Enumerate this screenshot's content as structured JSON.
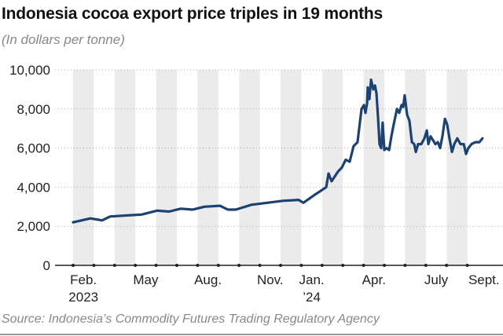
{
  "chart_data": {
    "type": "line",
    "title": "Indonesia cocoa export price triples in 19 months",
    "subtitle": "(In dollars per tonne)",
    "source": "Source: Indonesia’s Commodity Futures Trading Regulatory Agency",
    "xlabel": "",
    "ylabel": "",
    "x_unit": "months since Feb. 1, 2023",
    "xlim": [
      0,
      20
    ],
    "ylim": [
      0,
      10000
    ],
    "yticks": [
      0,
      2000,
      4000,
      6000,
      8000,
      10000
    ],
    "ytick_labels": [
      "0",
      "2,000",
      "4,000",
      "6,000",
      "8,000",
      "10,000"
    ],
    "xticks": [
      {
        "month": 0,
        "line1": "Feb.",
        "line2": "2023"
      },
      {
        "month": 3,
        "line1": "May",
        "line2": ""
      },
      {
        "month": 6,
        "line1": "Aug.",
        "line2": ""
      },
      {
        "month": 9,
        "line1": "Nov.",
        "line2": ""
      },
      {
        "month": 11,
        "line1": "Jan.",
        "line2": "’24"
      },
      {
        "month": 14,
        "line1": "Apr.",
        "line2": ""
      },
      {
        "month": 17,
        "line1": "July",
        "line2": ""
      },
      {
        "month": 19,
        "line1": "Sept.",
        "line2": ""
      }
    ],
    "shaded_months": [
      0,
      2,
      4,
      6,
      8,
      10,
      12,
      14,
      16,
      18
    ],
    "grid": true,
    "colors": {
      "line": "#1c4272",
      "band": "#ebebeb",
      "grid": "#aaaaaa"
    },
    "series": [
      {
        "name": "Cocoa export price",
        "x": [
          0,
          0.83,
          1.4,
          1.78,
          2.54,
          3.3,
          4.05,
          4.62,
          5.19,
          5.76,
          6.33,
          7.08,
          7.46,
          7.84,
          8.6,
          9.36,
          10.11,
          10.87,
          11.1,
          11.63,
          12.2,
          12.31,
          12.46,
          12.77,
          12.95,
          13.14,
          13.33,
          13.52,
          13.71,
          13.9,
          14.02,
          14.09,
          14.17,
          14.2,
          14.28,
          14.36,
          14.47,
          14.55,
          14.62,
          14.7,
          14.77,
          14.85,
          14.92,
          15.0,
          15.11,
          15.23,
          15.34,
          15.45,
          15.61,
          15.72,
          15.83,
          15.91,
          15.98,
          16.1,
          16.21,
          16.33,
          16.44,
          16.52,
          16.63,
          16.78,
          16.93,
          17.05,
          17.12,
          17.23,
          17.35,
          17.46,
          17.58,
          17.69,
          17.8,
          17.92,
          18.03,
          18.14,
          18.26,
          18.37,
          18.52,
          18.67,
          18.83,
          18.94,
          19.05,
          19.2,
          19.39,
          19.58,
          19.73
        ],
        "y": [
          2200,
          2400,
          2300,
          2500,
          2550,
          2600,
          2800,
          2750,
          2900,
          2850,
          3000,
          3050,
          2850,
          2850,
          3100,
          3200,
          3300,
          3350,
          3200,
          3600,
          4000,
          4700,
          4300,
          4800,
          5000,
          5400,
          5300,
          6100,
          6300,
          8000,
          8200,
          7800,
          8300,
          9100,
          8500,
          9500,
          9000,
          9200,
          8800,
          7500,
          6200,
          6000,
          7300,
          5900,
          6000,
          5900,
          6600,
          7200,
          8000,
          7800,
          8200,
          8100,
          8700,
          7700,
          7400,
          6300,
          6200,
          5800,
          6200,
          6200,
          6500,
          6900,
          6200,
          6600,
          6400,
          6200,
          6300,
          6000,
          6600,
          7500,
          7200,
          6500,
          5800,
          6200,
          6500,
          6200,
          6200,
          5700,
          6000,
          6200,
          6300,
          6300,
          6500
        ]
      }
    ]
  }
}
